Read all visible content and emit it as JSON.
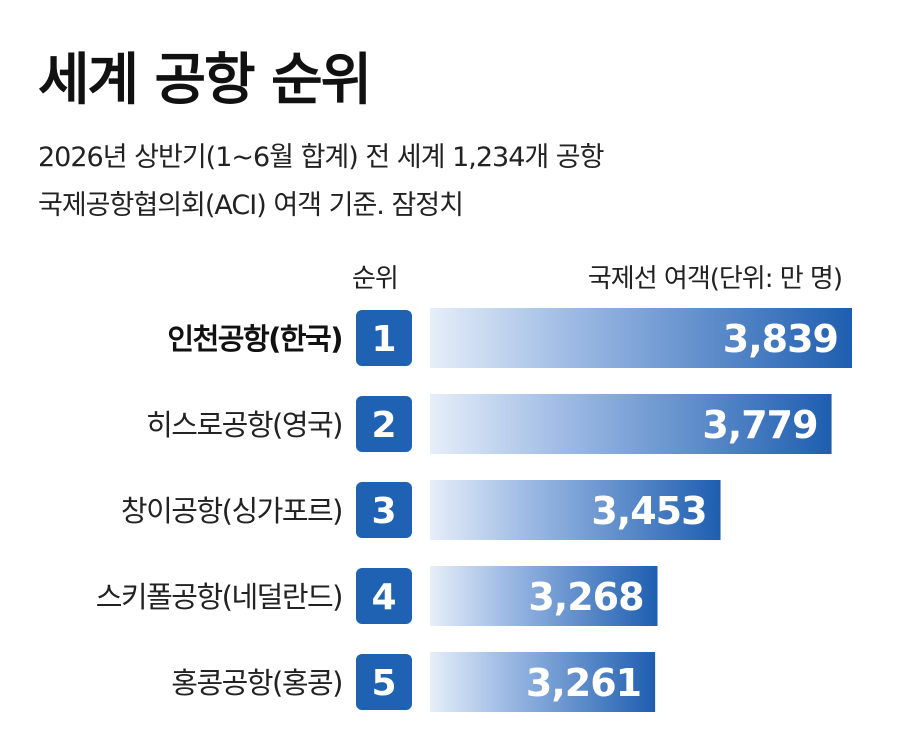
{
  "title": "세계 공항 순위",
  "subtitle_lines": [
    "2026년 상반기(1~6월 합계) 전 세계 1,234개 공항",
    "국제공항협의회(ACI) 여객 기준. 잠정치"
  ],
  "column_headers": {
    "rank": "순위",
    "value": "국제선 여객(단위: 만 명)"
  },
  "colors": {
    "bar_dark": "#1e5eb0",
    "bar_light": "#e6eef9",
    "rank_box": "#1f62b4"
  },
  "chart_data": {
    "type": "bar",
    "orientation": "horizontal",
    "title": "세계 공항 순위",
    "categories": [
      "인천공항(한국)",
      "히스로공항(영국)",
      "창이공항(싱가포르)",
      "스키폴공항(네덜란드)",
      "홍콩공항(홍콩)"
    ],
    "ranks": [
      "1",
      "2",
      "3",
      "4",
      "5"
    ],
    "values": [
      3839,
      3779,
      3453,
      3268,
      3261
    ],
    "value_labels": [
      "3,839",
      "3,779",
      "3,453",
      "3,268",
      "3,261"
    ],
    "unit": "만 명",
    "xlim": [
      0,
      3839
    ],
    "highlight_index": 0
  }
}
